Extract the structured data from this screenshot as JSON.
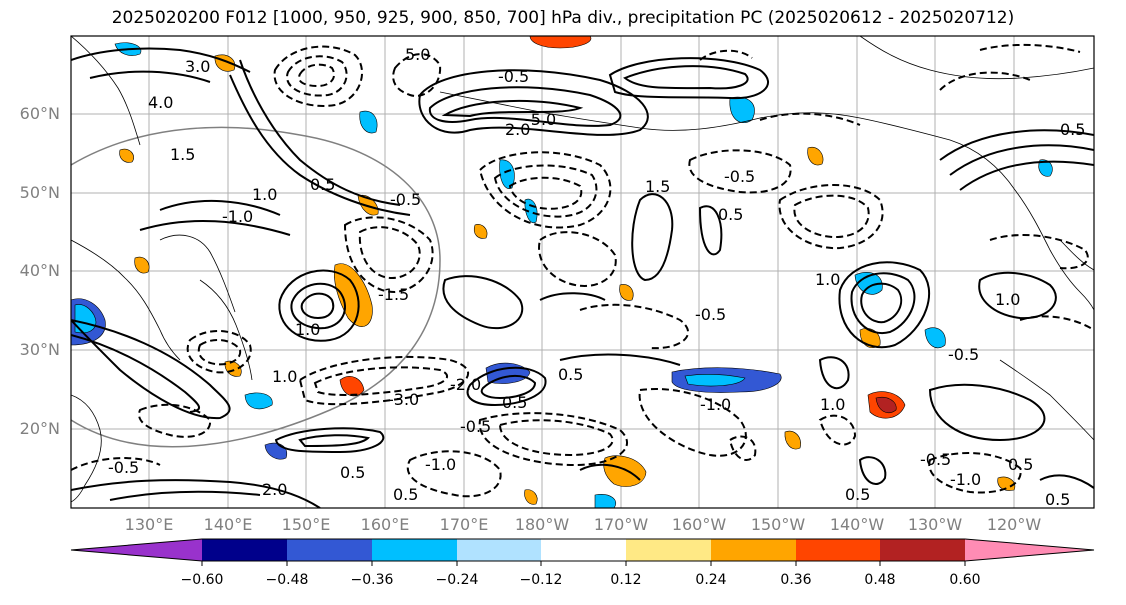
{
  "title": "2025020200 F012 [1000, 950, 925, 900, 850, 700] hPa div., precipitation PC (2025020612 - 2025020712)",
  "map": {
    "lat_labels": [
      "60°N",
      "50°N",
      "40°N",
      "30°N",
      "20°N"
    ],
    "lon_labels": [
      "130°E",
      "140°E",
      "150°E",
      "160°E",
      "170°E",
      "180°W",
      "170°W",
      "160°W",
      "150°W",
      "140°W",
      "130°W",
      "120°W"
    ],
    "contour_labels": [
      "3.0",
      "4.0",
      "1.5",
      "1.0",
      "0.5",
      "-0.5",
      "-1.0",
      "-1.5",
      "-2.0",
      "-3.0",
      "-5.0",
      "5.0",
      "2.0",
      "-0.5",
      "1.5",
      "0.5",
      "-0.5",
      "1.0",
      "-1.0",
      "0.5",
      "-0.5",
      "1.0",
      "2.0",
      "-0.5",
      "0.5",
      "-1.0",
      "0.5",
      "1.0",
      "0.5",
      "-0.5",
      "0.5",
      "-0.5",
      "-1.0",
      "0.5",
      "1.0",
      "-0.5",
      "0.5",
      "1.0",
      "0.5"
    ]
  },
  "colorbar": {
    "ticks": [
      "−0.60",
      "−0.48",
      "−0.36",
      "−0.24",
      "−0.12",
      "0.12",
      "0.24",
      "0.36",
      "0.48",
      "0.60"
    ],
    "colors": [
      "#9932cc",
      "#00008b",
      "#3358d4",
      "#00bfff",
      "#b0e2ff",
      "#ffffff",
      "#ffe985",
      "#ffa500",
      "#ff4500",
      "#b22222",
      "#ff8cb4"
    ]
  }
}
